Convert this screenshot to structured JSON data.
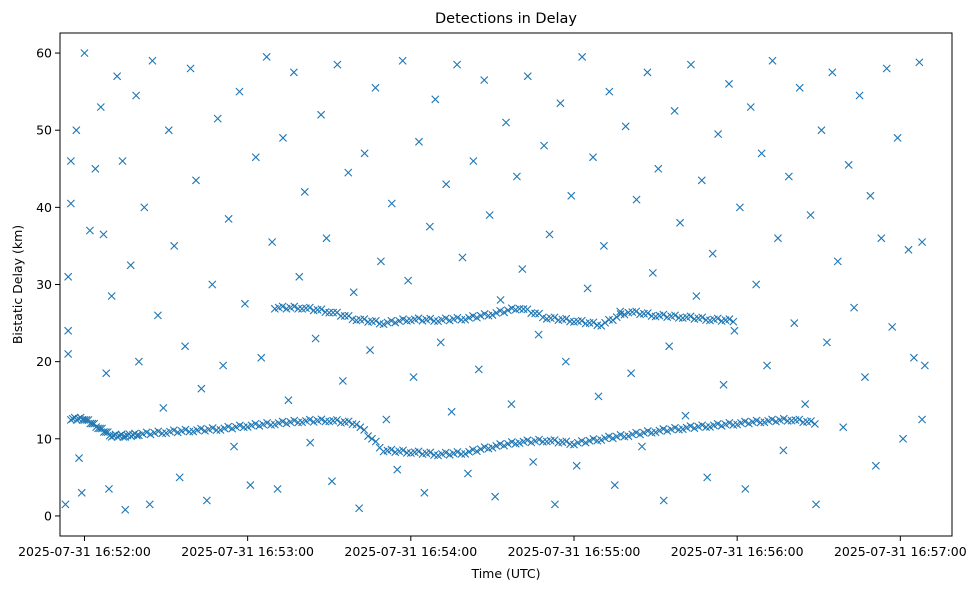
{
  "chart_data": {
    "type": "scatter",
    "title": "Detections in Delay",
    "xlabel": "Time (UTC)",
    "ylabel": "Bistatic Delay (km)",
    "marker": "x",
    "color": "#1f77b4",
    "grid": false,
    "x_axis": {
      "type": "datetime",
      "range": [
        "2025-07-31 16:51:51",
        "2025-07-31 16:57:19"
      ],
      "ticks": [
        "2025-07-31 16:52:00",
        "2025-07-31 16:53:00",
        "2025-07-31 16:54:00",
        "2025-07-31 16:55:00",
        "2025-07-31 16:56:00",
        "2025-07-31 16:57:00"
      ]
    },
    "y_axis": {
      "range": [
        -2.6,
        62.6
      ],
      "ticks": [
        0,
        10,
        20,
        30,
        40,
        50,
        60
      ]
    },
    "tracks": [
      {
        "time": [
          "2025-07-31 16:51:55",
          "2025-07-31 16:52:00",
          "2025-07-31 16:52:05",
          "2025-07-31 16:52:10",
          "2025-07-31 16:52:15",
          "2025-07-31 16:52:20",
          "2025-07-31 16:52:30",
          "2025-07-31 16:52:40",
          "2025-07-31 16:52:50",
          "2025-07-31 16:53:00",
          "2025-07-31 16:53:10",
          "2025-07-31 16:53:20",
          "2025-07-31 16:53:30",
          "2025-07-31 16:53:40",
          "2025-07-31 16:53:50",
          "2025-07-31 16:54:00",
          "2025-07-31 16:54:10",
          "2025-07-31 16:54:20",
          "2025-07-31 16:54:30",
          "2025-07-31 16:54:40",
          "2025-07-31 16:54:50",
          "2025-07-31 16:55:00",
          "2025-07-31 16:55:10",
          "2025-07-31 16:55:20",
          "2025-07-31 16:55:30",
          "2025-07-31 16:55:40",
          "2025-07-31 16:55:50",
          "2025-07-31 16:56:00",
          "2025-07-31 16:56:10",
          "2025-07-31 16:56:20",
          "2025-07-31 16:56:30"
        ],
        "delay": [
          12.6,
          12.6,
          11.5,
          10.4,
          10.4,
          10.6,
          10.9,
          11.1,
          11.3,
          11.7,
          12.0,
          12.3,
          12.4,
          12.0,
          8.5,
          8.3,
          8.0,
          8.2,
          9.0,
          9.6,
          9.8,
          9.4,
          10.0,
          10.5,
          11.0,
          11.4,
          11.7,
          12.0,
          12.3,
          12.5,
          12.0
        ]
      },
      {
        "time": [
          "2025-07-31 16:53:10",
          "2025-07-31 16:53:20",
          "2025-07-31 16:53:30",
          "2025-07-31 16:53:40",
          "2025-07-31 16:53:50",
          "2025-07-31 16:54:00",
          "2025-07-31 16:54:10",
          "2025-07-31 16:54:20",
          "2025-07-31 16:54:30",
          "2025-07-31 16:54:40",
          "2025-07-31 16:54:50",
          "2025-07-31 16:55:00",
          "2025-07-31 16:55:10",
          "2025-07-31 16:55:20",
          "2025-07-31 16:55:30",
          "2025-07-31 16:55:40",
          "2025-07-31 16:55:50",
          "2025-07-31 16:56:00"
        ],
        "delay": [
          27.0,
          27.0,
          26.5,
          25.5,
          25.0,
          25.5,
          25.4,
          25.6,
          26.2,
          27.0,
          25.7,
          25.3,
          24.8,
          26.5,
          26.0,
          25.8,
          25.5,
          25.3
        ]
      }
    ],
    "scatter_clutter": [
      [
        "2025-07-31 16:51:53",
        1.5
      ],
      [
        "2025-07-31 16:51:54",
        24.0
      ],
      [
        "2025-07-31 16:51:54",
        21.0
      ],
      [
        "2025-07-31 16:51:54",
        31.0
      ],
      [
        "2025-07-31 16:51:55",
        40.5
      ],
      [
        "2025-07-31 16:51:55",
        46.0
      ],
      [
        "2025-07-31 16:51:57",
        50.0
      ],
      [
        "2025-07-31 16:51:58",
        7.5
      ],
      [
        "2025-07-31 16:51:59",
        3.0
      ],
      [
        "2025-07-31 16:52:00",
        60.0
      ],
      [
        "2025-07-31 16:52:02",
        37.0
      ],
      [
        "2025-07-31 16:52:04",
        45.0
      ],
      [
        "2025-07-31 16:52:06",
        53.0
      ],
      [
        "2025-07-31 16:52:07",
        36.5
      ],
      [
        "2025-07-31 16:52:08",
        18.5
      ],
      [
        "2025-07-31 16:52:09",
        3.5
      ],
      [
        "2025-07-31 16:52:10",
        28.5
      ],
      [
        "2025-07-31 16:52:12",
        57.0
      ],
      [
        "2025-07-31 16:52:14",
        46.0
      ],
      [
        "2025-07-31 16:52:15",
        0.8
      ],
      [
        "2025-07-31 16:52:17",
        32.5
      ],
      [
        "2025-07-31 16:52:19",
        54.5
      ],
      [
        "2025-07-31 16:52:20",
        20.0
      ],
      [
        "2025-07-31 16:52:22",
        40.0
      ],
      [
        "2025-07-31 16:52:24",
        1.5
      ],
      [
        "2025-07-31 16:52:25",
        59.0
      ],
      [
        "2025-07-31 16:52:27",
        26.0
      ],
      [
        "2025-07-31 16:52:29",
        14.0
      ],
      [
        "2025-07-31 16:52:31",
        50.0
      ],
      [
        "2025-07-31 16:52:33",
        35.0
      ],
      [
        "2025-07-31 16:52:35",
        5.0
      ],
      [
        "2025-07-31 16:52:37",
        22.0
      ],
      [
        "2025-07-31 16:52:39",
        58.0
      ],
      [
        "2025-07-31 16:52:41",
        43.5
      ],
      [
        "2025-07-31 16:52:43",
        16.5
      ],
      [
        "2025-07-31 16:52:45",
        2.0
      ],
      [
        "2025-07-31 16:52:47",
        30.0
      ],
      [
        "2025-07-31 16:52:49",
        51.5
      ],
      [
        "2025-07-31 16:52:51",
        19.5
      ],
      [
        "2025-07-31 16:52:53",
        38.5
      ],
      [
        "2025-07-31 16:52:55",
        9.0
      ],
      [
        "2025-07-31 16:52:57",
        55.0
      ],
      [
        "2025-07-31 16:52:59",
        27.5
      ],
      [
        "2025-07-31 16:53:01",
        4.0
      ],
      [
        "2025-07-31 16:53:03",
        46.5
      ],
      [
        "2025-07-31 16:53:05",
        20.5
      ],
      [
        "2025-07-31 16:53:07",
        59.5
      ],
      [
        "2025-07-31 16:53:09",
        35.5
      ],
      [
        "2025-07-31 16:53:11",
        3.5
      ],
      [
        "2025-07-31 16:53:13",
        49.0
      ],
      [
        "2025-07-31 16:53:15",
        15.0
      ],
      [
        "2025-07-31 16:53:17",
        57.5
      ],
      [
        "2025-07-31 16:53:19",
        31.0
      ],
      [
        "2025-07-31 16:53:21",
        42.0
      ],
      [
        "2025-07-31 16:53:23",
        9.5
      ],
      [
        "2025-07-31 16:53:25",
        23.0
      ],
      [
        "2025-07-31 16:53:27",
        52.0
      ],
      [
        "2025-07-31 16:53:29",
        36.0
      ],
      [
        "2025-07-31 16:53:31",
        4.5
      ],
      [
        "2025-07-31 16:53:33",
        58.5
      ],
      [
        "2025-07-31 16:53:35",
        17.5
      ],
      [
        "2025-07-31 16:53:37",
        44.5
      ],
      [
        "2025-07-31 16:53:39",
        29.0
      ],
      [
        "2025-07-31 16:53:41",
        1.0
      ],
      [
        "2025-07-31 16:53:43",
        47.0
      ],
      [
        "2025-07-31 16:53:45",
        21.5
      ],
      [
        "2025-07-31 16:53:47",
        55.5
      ],
      [
        "2025-07-31 16:53:49",
        33.0
      ],
      [
        "2025-07-31 16:53:51",
        12.5
      ],
      [
        "2025-07-31 16:53:53",
        40.5
      ],
      [
        "2025-07-31 16:53:55",
        6.0
      ],
      [
        "2025-07-31 16:53:57",
        59.0
      ],
      [
        "2025-07-31 16:53:59",
        30.5
      ],
      [
        "2025-07-31 16:54:01",
        18.0
      ],
      [
        "2025-07-31 16:54:03",
        48.5
      ],
      [
        "2025-07-31 16:54:05",
        3.0
      ],
      [
        "2025-07-31 16:54:07",
        37.5
      ],
      [
        "2025-07-31 16:54:09",
        54.0
      ],
      [
        "2025-07-31 16:54:11",
        22.5
      ],
      [
        "2025-07-31 16:54:13",
        43.0
      ],
      [
        "2025-07-31 16:54:15",
        13.5
      ],
      [
        "2025-07-31 16:54:17",
        58.5
      ],
      [
        "2025-07-31 16:54:19",
        33.5
      ],
      [
        "2025-07-31 16:54:21",
        5.5
      ],
      [
        "2025-07-31 16:54:23",
        46.0
      ],
      [
        "2025-07-31 16:54:25",
        19.0
      ],
      [
        "2025-07-31 16:54:27",
        56.5
      ],
      [
        "2025-07-31 16:54:29",
        39.0
      ],
      [
        "2025-07-31 16:54:31",
        2.5
      ],
      [
        "2025-07-31 16:54:33",
        28.0
      ],
      [
        "2025-07-31 16:54:35",
        51.0
      ],
      [
        "2025-07-31 16:54:37",
        14.5
      ],
      [
        "2025-07-31 16:54:39",
        44.0
      ],
      [
        "2025-07-31 16:54:41",
        32.0
      ],
      [
        "2025-07-31 16:54:43",
        57.0
      ],
      [
        "2025-07-31 16:54:45",
        7.0
      ],
      [
        "2025-07-31 16:54:47",
        23.5
      ],
      [
        "2025-07-31 16:54:49",
        48.0
      ],
      [
        "2025-07-31 16:54:51",
        36.5
      ],
      [
        "2025-07-31 16:54:53",
        1.5
      ],
      [
        "2025-07-31 16:54:55",
        53.5
      ],
      [
        "2025-07-31 16:54:57",
        20.0
      ],
      [
        "2025-07-31 16:54:59",
        41.5
      ],
      [
        "2025-07-31 16:55:01",
        6.5
      ],
      [
        "2025-07-31 16:55:03",
        59.5
      ],
      [
        "2025-07-31 16:55:05",
        29.5
      ],
      [
        "2025-07-31 16:55:07",
        46.5
      ],
      [
        "2025-07-31 16:55:09",
        15.5
      ],
      [
        "2025-07-31 16:55:11",
        35.0
      ],
      [
        "2025-07-31 16:55:13",
        55.0
      ],
      [
        "2025-07-31 16:55:15",
        4.0
      ],
      [
        "2025-07-31 16:55:17",
        26.5
      ],
      [
        "2025-07-31 16:55:19",
        50.5
      ],
      [
        "2025-07-31 16:55:21",
        18.5
      ],
      [
        "2025-07-31 16:55:23",
        41.0
      ],
      [
        "2025-07-31 16:55:25",
        9.0
      ],
      [
        "2025-07-31 16:55:27",
        57.5
      ],
      [
        "2025-07-31 16:55:29",
        31.5
      ],
      [
        "2025-07-31 16:55:31",
        45.0
      ],
      [
        "2025-07-31 16:55:33",
        2.0
      ],
      [
        "2025-07-31 16:55:35",
        22.0
      ],
      [
        "2025-07-31 16:55:37",
        52.5
      ],
      [
        "2025-07-31 16:55:39",
        38.0
      ],
      [
        "2025-07-31 16:55:41",
        13.0
      ],
      [
        "2025-07-31 16:55:43",
        58.5
      ],
      [
        "2025-07-31 16:55:45",
        28.5
      ],
      [
        "2025-07-31 16:55:47",
        43.5
      ],
      [
        "2025-07-31 16:55:49",
        5.0
      ],
      [
        "2025-07-31 16:55:51",
        34.0
      ],
      [
        "2025-07-31 16:55:53",
        49.5
      ],
      [
        "2025-07-31 16:55:55",
        17.0
      ],
      [
        "2025-07-31 16:55:57",
        56.0
      ],
      [
        "2025-07-31 16:55:59",
        24.0
      ],
      [
        "2025-07-31 16:56:01",
        40.0
      ],
      [
        "2025-07-31 16:56:03",
        3.5
      ],
      [
        "2025-07-31 16:56:05",
        53.0
      ],
      [
        "2025-07-31 16:56:07",
        30.0
      ],
      [
        "2025-07-31 16:56:09",
        47.0
      ],
      [
        "2025-07-31 16:56:11",
        19.5
      ],
      [
        "2025-07-31 16:56:13",
        59.0
      ],
      [
        "2025-07-31 16:56:15",
        36.0
      ],
      [
        "2025-07-31 16:56:17",
        8.5
      ],
      [
        "2025-07-31 16:56:19",
        44.0
      ],
      [
        "2025-07-31 16:56:21",
        25.0
      ],
      [
        "2025-07-31 16:56:23",
        55.5
      ],
      [
        "2025-07-31 16:56:25",
        14.5
      ],
      [
        "2025-07-31 16:56:27",
        39.0
      ],
      [
        "2025-07-31 16:56:29",
        1.5
      ],
      [
        "2025-07-31 16:56:31",
        50.0
      ],
      [
        "2025-07-31 16:56:33",
        22.5
      ],
      [
        "2025-07-31 16:56:35",
        57.5
      ],
      [
        "2025-07-31 16:56:37",
        33.0
      ],
      [
        "2025-07-31 16:56:39",
        11.5
      ],
      [
        "2025-07-31 16:56:41",
        45.5
      ],
      [
        "2025-07-31 16:56:43",
        27.0
      ],
      [
        "2025-07-31 16:56:45",
        54.5
      ],
      [
        "2025-07-31 16:56:47",
        18.0
      ],
      [
        "2025-07-31 16:56:49",
        41.5
      ],
      [
        "2025-07-31 16:56:51",
        6.5
      ],
      [
        "2025-07-31 16:56:53",
        36.0
      ],
      [
        "2025-07-31 16:56:55",
        58.0
      ],
      [
        "2025-07-31 16:56:57",
        24.5
      ],
      [
        "2025-07-31 16:56:59",
        49.0
      ],
      [
        "2025-07-31 16:57:01",
        10.0
      ],
      [
        "2025-07-31 16:57:03",
        34.5
      ],
      [
        "2025-07-31 16:57:05",
        20.5
      ],
      [
        "2025-07-31 16:57:07",
        58.8
      ],
      [
        "2025-07-31 16:57:08",
        12.5
      ],
      [
        "2025-07-31 16:57:08",
        35.5
      ],
      [
        "2025-07-31 16:57:09",
        19.5
      ]
    ]
  }
}
